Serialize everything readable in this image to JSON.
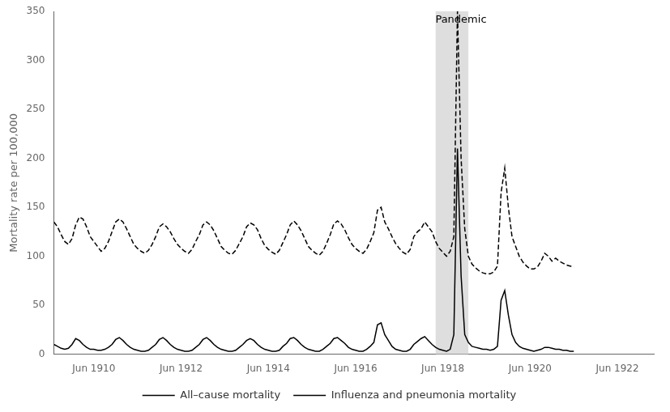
{
  "chart_data": {
    "type": "line",
    "ylabel": "Mortality rate per 100,000",
    "x": [
      1909.5,
      1909.5833,
      1909.6667,
      1909.75,
      1909.8333,
      1909.9167,
      1910,
      1910.0833,
      1910.1667,
      1910.25,
      1910.3333,
      1910.4167,
      1910.5,
      1910.5833,
      1910.6667,
      1910.75,
      1910.8333,
      1910.9167,
      1911,
      1911.0833,
      1911.1667,
      1911.25,
      1911.3333,
      1911.4167,
      1911.5,
      1911.5833,
      1911.6667,
      1911.75,
      1911.8333,
      1911.9167,
      1912,
      1912.0833,
      1912.1667,
      1912.25,
      1912.3333,
      1912.4167,
      1912.5,
      1912.5833,
      1912.6667,
      1912.75,
      1912.8333,
      1912.9167,
      1913,
      1913.0833,
      1913.1667,
      1913.25,
      1913.3333,
      1913.4167,
      1913.5,
      1913.5833,
      1913.6667,
      1913.75,
      1913.8333,
      1913.9167,
      1914,
      1914.0833,
      1914.1667,
      1914.25,
      1914.3333,
      1914.4167,
      1914.5,
      1914.5833,
      1914.6667,
      1914.75,
      1914.8333,
      1914.9167,
      1915,
      1915.0833,
      1915.1667,
      1915.25,
      1915.3333,
      1915.4167,
      1915.5,
      1915.5833,
      1915.6667,
      1915.75,
      1915.8333,
      1915.9167,
      1916,
      1916.0833,
      1916.1667,
      1916.25,
      1916.3333,
      1916.4167,
      1916.5,
      1916.5833,
      1916.6667,
      1916.75,
      1916.8333,
      1916.9167,
      1917,
      1917.0833,
      1917.1667,
      1917.25,
      1917.3333,
      1917.4167,
      1917.5,
      1917.5833,
      1917.6667,
      1917.75,
      1917.8333,
      1917.9167,
      1918,
      1918.0833,
      1918.1667,
      1918.25,
      1918.3333,
      1918.4167,
      1918.5,
      1918.5833,
      1918.6667,
      1918.75,
      1918.8333,
      1918.9167,
      1919,
      1919.0833,
      1919.1667,
      1919.25,
      1919.3333,
      1919.4167,
      1919.5,
      1919.5833,
      1919.6667,
      1919.75,
      1919.8333,
      1919.9167,
      1920,
      1920.0833,
      1920.1667,
      1920.25,
      1920.3333,
      1920.4167,
      1920.5,
      1920.5833,
      1920.6667,
      1920.75,
      1920.8333,
      1920.9167,
      1921,
      1921.0833,
      1921.1667,
      1921.25,
      1921.3333,
      1921.4167
    ],
    "series": [
      {
        "name": "All–cause mortality",
        "color": "#000000",
        "line_style": "dashed",
        "values": [
          135,
          130,
          122,
          115,
          112,
          118,
          132,
          140,
          138,
          130,
          120,
          115,
          110,
          105,
          108,
          115,
          125,
          135,
          138,
          135,
          128,
          120,
          112,
          108,
          105,
          103,
          106,
          112,
          120,
          130,
          133,
          130,
          125,
          118,
          112,
          108,
          105,
          103,
          107,
          115,
          122,
          132,
          135,
          132,
          126,
          118,
          110,
          106,
          103,
          102,
          106,
          113,
          120,
          130,
          134,
          132,
          127,
          118,
          111,
          107,
          104,
          102,
          106,
          114,
          122,
          132,
          136,
          132,
          126,
          118,
          110,
          106,
          103,
          101,
          105,
          113,
          122,
          133,
          136,
          133,
          127,
          119,
          112,
          108,
          105,
          103,
          107,
          115,
          124,
          147,
          150,
          135,
          128,
          120,
          113,
          108,
          104,
          102,
          107,
          120,
          125,
          128,
          135,
          130,
          125,
          115,
          108,
          104,
          100,
          105,
          120,
          350,
          200,
          128,
          100,
          92,
          88,
          85,
          83,
          82,
          82,
          84,
          90,
          165,
          190,
          150,
          120,
          110,
          100,
          94,
          90,
          87,
          87,
          89,
          95,
          103,
          100,
          95,
          98,
          95,
          93,
          91,
          90,
          89
        ]
      },
      {
        "name": "Influenza and pneumonia mortality",
        "color": "#000000",
        "line_style": "solid",
        "values": [
          10,
          8,
          6,
          5,
          6,
          10,
          16,
          14,
          10,
          7,
          5,
          5,
          4,
          4,
          5,
          7,
          10,
          15,
          17,
          14,
          10,
          7,
          5,
          4,
          3,
          3,
          4,
          7,
          10,
          15,
          17,
          14,
          10,
          7,
          5,
          4,
          3,
          3,
          4,
          7,
          10,
          15,
          17,
          14,
          10,
          7,
          5,
          4,
          3,
          3,
          4,
          7,
          10,
          14,
          16,
          14,
          10,
          7,
          5,
          4,
          3,
          3,
          4,
          8,
          11,
          16,
          17,
          14,
          10,
          7,
          5,
          4,
          3,
          3,
          5,
          8,
          11,
          16,
          17,
          14,
          11,
          7,
          5,
          4,
          3,
          3,
          5,
          8,
          12,
          30,
          32,
          20,
          14,
          8,
          5,
          4,
          3,
          3,
          5,
          10,
          13,
          16,
          18,
          14,
          10,
          7,
          5,
          4,
          3,
          5,
          20,
          210,
          80,
          20,
          12,
          8,
          7,
          6,
          5,
          5,
          4,
          5,
          8,
          55,
          65,
          40,
          20,
          12,
          8,
          6,
          5,
          4,
          3,
          4,
          5,
          7,
          7,
          6,
          5,
          5,
          4,
          4,
          3,
          3
        ]
      }
    ],
    "xlim": [
      1909.5,
      1923.25
    ],
    "xticks": [
      {
        "value": 1910.416,
        "label": "Jun 1910"
      },
      {
        "value": 1912.416,
        "label": "Jun 1912"
      },
      {
        "value": 1914.416,
        "label": "Jun 1914"
      },
      {
        "value": 1916.416,
        "label": "Jun 1916"
      },
      {
        "value": 1918.416,
        "label": "Jun 1918"
      },
      {
        "value": 1920.416,
        "label": "Jun 1920"
      },
      {
        "value": 1922.416,
        "label": "Jun 1922"
      }
    ],
    "ylim": [
      0,
      350
    ],
    "yticks": [
      0,
      50,
      100,
      150,
      200,
      250,
      300,
      350
    ],
    "shaded_span": {
      "x0": 1918.25,
      "x1": 1919.0,
      "color": "#d3d3d3"
    },
    "annotations": [
      {
        "text": "Pandemic",
        "x": 1918.83,
        "y": 348
      }
    ],
    "grid": false,
    "legend": "bottom"
  }
}
